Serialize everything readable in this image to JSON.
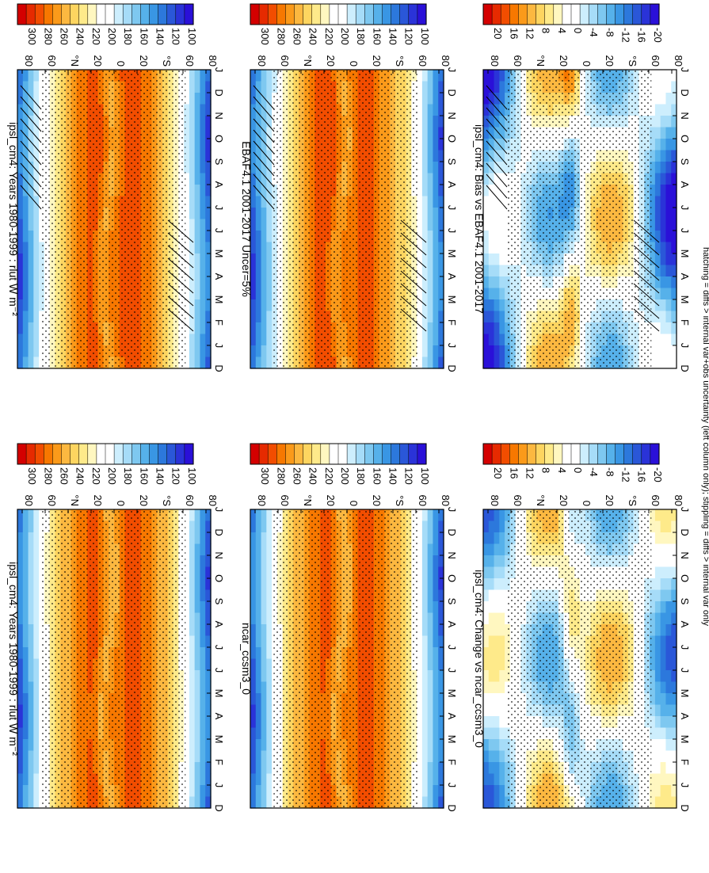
{
  "footer": "hatching = diffs > internal var+obs uncertainty (left column only); stippling = diffs > internal var only",
  "months": [
    "D",
    "J",
    "F",
    "M",
    "A",
    "M",
    "J",
    "J",
    "A",
    "S",
    "O",
    "N",
    "D",
    "J"
  ],
  "lat_ticks": [
    "80",
    "60",
    "°N",
    "20",
    "0",
    "20",
    "°S",
    "60",
    "80"
  ],
  "colorbars": {
    "abs": {
      "labels": [
        "300",
        "280",
        "260",
        "240",
        "220",
        "200",
        "180",
        "160",
        "140",
        "120",
        "100"
      ],
      "colors": [
        "#d40000",
        "#e62a00",
        "#f24d00",
        "#f77800",
        "#fb9a1a",
        "#fcb840",
        "#fdd560",
        "#feea8a",
        "#fff7c0",
        "#ffffff",
        "#ffffff",
        "#cdeefd",
        "#a6dcf8",
        "#7ec8f0",
        "#56b1ea",
        "#3996e4",
        "#2c78dc",
        "#2a57d8",
        "#2a33d8",
        "#2a10d8"
      ]
    },
    "diff": {
      "labels": [
        "20",
        "16",
        "12",
        "8",
        "4",
        "0",
        "-4",
        "-8",
        "-12",
        "-16",
        "-20"
      ],
      "colors": [
        "#d40000",
        "#e62a00",
        "#f24d00",
        "#f77800",
        "#fb9a1a",
        "#fcb840",
        "#fdd560",
        "#feea8a",
        "#fff7c0",
        "#ffffff",
        "#ffffff",
        "#cdeefd",
        "#a6dcf8",
        "#7ec8f0",
        "#56b1ea",
        "#3996e4",
        "#2c78dc",
        "#2a57d8",
        "#2a33d8",
        "#2a10d8"
      ]
    }
  },
  "chart_data": [
    {
      "type": "heatmap",
      "title": "ipsl_cm4: Years 1980-1999 : rlut W m⁻²",
      "xlabel": "month",
      "ylabel": "latitude",
      "hatch": true,
      "panel": "mod_left",
      "xlim": [
        0,
        13
      ],
      "ylim": [
        -90,
        90
      ],
      "units": "W m-2",
      "range": [
        100,
        300
      ]
    },
    {
      "type": "heatmap",
      "title": "ipsl_cm4: Years 1980-1999 : rlut W m⁻²",
      "xlabel": "month",
      "ylabel": "latitude",
      "hatch": false,
      "panel": "mod_right",
      "xlim": [
        0,
        13
      ],
      "ylim": [
        -90,
        90
      ],
      "units": "W m-2",
      "range": [
        100,
        300
      ]
    },
    {
      "type": "heatmap",
      "title": "EBAF4.1 2001-2017 Uncer=5%",
      "xlabel": "month",
      "ylabel": "latitude",
      "hatch": true,
      "panel": "obs",
      "xlim": [
        0,
        13
      ],
      "ylim": [
        -90,
        90
      ],
      "units": "W m-2",
      "range": [
        100,
        300
      ]
    },
    {
      "type": "heatmap",
      "title": "ncar_ccsm3_0",
      "xlabel": "month",
      "ylabel": "latitude",
      "hatch": false,
      "panel": "ref",
      "xlim": [
        0,
        13
      ],
      "ylim": [
        -90,
        90
      ],
      "units": "W m-2",
      "range": [
        100,
        300
      ]
    },
    {
      "type": "heatmap",
      "title": "ipsl_cm4: Bias vs EBAF4.1 2001-2017",
      "xlabel": "month",
      "ylabel": "latitude",
      "hatch": true,
      "panel": "bias",
      "xlim": [
        0,
        13
      ],
      "ylim": [
        -90,
        90
      ],
      "units": "W m-2",
      "range": [
        -20,
        20
      ]
    },
    {
      "type": "heatmap",
      "title": "ipsl_cm4: Change vs ncar_ccsm3_0",
      "xlabel": "month",
      "ylabel": "latitude",
      "hatch": false,
      "panel": "change",
      "xlim": [
        0,
        13
      ],
      "ylim": [
        -90,
        90
      ],
      "units": "W m-2",
      "range": [
        -20,
        20
      ]
    }
  ]
}
